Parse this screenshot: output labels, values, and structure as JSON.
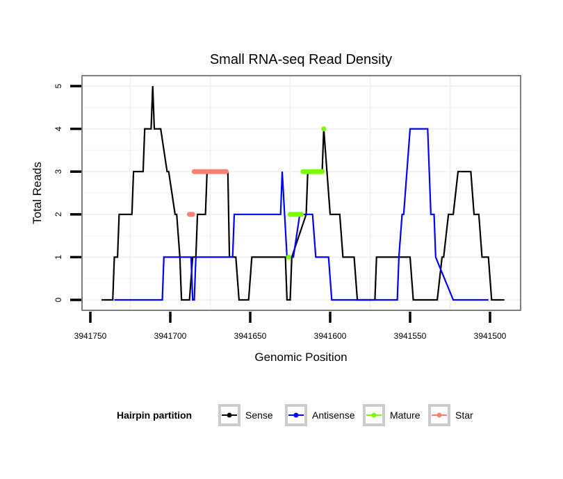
{
  "chart_data": {
    "type": "line",
    "title": "Small RNA-seq Read Density",
    "xlabel": "Genomic Position",
    "ylabel": "Total Reads",
    "xlim": [
      3941757,
      3941491
    ],
    "x_reversed": true,
    "ylim": [
      -0.25,
      5.25
    ],
    "x_ticks": [
      3941750,
      3941700,
      3941650,
      3941600,
      3941550,
      3941500
    ],
    "x_tick_labels": [
      "3941750",
      "3941700",
      "3941650",
      "3941600",
      "3941550",
      "3941500"
    ],
    "y_ticks": [
      0,
      1,
      2,
      3,
      4,
      5
    ],
    "y_tick_labels": [
      "0",
      "1",
      "2",
      "3",
      "4",
      "5"
    ],
    "grid": true,
    "legend": {
      "title": "Hairpin partition",
      "position": "bottom",
      "entries": [
        {
          "name": "Sense",
          "color": "#000000"
        },
        {
          "name": "Antisense",
          "color": "#0000ff"
        },
        {
          "name": "Mature",
          "color": "#7cfc00"
        },
        {
          "name": "Star",
          "color": "#fa8072"
        }
      ]
    },
    "series": [
      {
        "name": "Sense",
        "color": "#000000",
        "style": "line",
        "x": [
          3941743,
          3941736,
          3941735,
          3941733,
          3941732,
          3941724,
          3941723,
          3941717,
          3941716,
          3941712,
          3941711,
          3941710,
          3941706,
          3941702,
          3941701,
          3941697,
          3941696,
          3941694,
          3941693,
          3941688,
          3941686,
          3941684,
          3941683,
          3941678,
          3941677,
          3941664,
          3941663,
          3941659,
          3941657,
          3941651,
          3941649,
          3941628,
          3941627,
          3941625,
          3941624,
          3941615,
          3941614,
          3941605,
          3941604,
          3941602,
          3941600,
          3941594,
          3941592,
          3941585,
          3941583,
          3941572,
          3941571,
          3941550,
          3941548,
          3941533,
          3941530,
          3941529,
          3941526,
          3941523,
          3941520,
          3941512,
          3941510,
          3941507,
          3941505,
          3941501,
          3941499,
          3941491
        ],
        "y": [
          0,
          0,
          1,
          1,
          2,
          2,
          3,
          3,
          4,
          4,
          5,
          4,
          4,
          3,
          3,
          2,
          2,
          1,
          0,
          0,
          1,
          1,
          2,
          2,
          3,
          3,
          1,
          1,
          0,
          0,
          1,
          1,
          0,
          0,
          1,
          2,
          3,
          3,
          4,
          3,
          2,
          2,
          1,
          1,
          0,
          0,
          1,
          1,
          0,
          0,
          1,
          1,
          2,
          2,
          3,
          3,
          2,
          2,
          1,
          1,
          0,
          0
        ]
      },
      {
        "name": "Antisense",
        "color": "#0000ff",
        "style": "line",
        "x": [
          3941735,
          3941705,
          3941704,
          3941687,
          3941686,
          3941685,
          3941684,
          3941682,
          3941681,
          3941663,
          3941662,
          3941661,
          3941660,
          3941643,
          3941642,
          3941631,
          3941630,
          3941627,
          3941626,
          3941624,
          3941623,
          3941619,
          3941618,
          3941611,
          3941609,
          3941601,
          3941599,
          3941578,
          3941577,
          3941558,
          3941557,
          3941555,
          3941554,
          3941552,
          3941550,
          3941539,
          3941537,
          3941535,
          3941534,
          3941523,
          3941522,
          3941501
        ],
        "y": [
          0,
          0,
          1,
          1,
          0,
          0,
          1,
          1,
          1,
          1,
          1,
          1,
          2,
          2,
          2,
          2,
          3,
          1,
          1,
          1,
          1,
          2,
          2,
          2,
          1,
          1,
          0,
          0,
          0,
          0,
          1,
          2,
          2,
          3,
          4,
          4,
          2,
          2,
          1,
          0,
          0,
          0
        ]
      },
      {
        "name": "Mature",
        "color": "#7cfc00",
        "style": "points",
        "x": [
          3941626,
          3941625,
          3941624,
          3941623,
          3941622,
          3941621,
          3941620,
          3941619,
          3941618,
          3941617,
          3941616,
          3941615,
          3941614,
          3941613,
          3941612,
          3941611,
          3941610,
          3941609,
          3941608,
          3941607,
          3941606,
          3941605,
          3941604
        ],
        "y": [
          1,
          2,
          2,
          2,
          2,
          2,
          2,
          2,
          2,
          3,
          3,
          3,
          3,
          3,
          3,
          3,
          3,
          3,
          3,
          3,
          3,
          3,
          4
        ]
      },
      {
        "name": "Star",
        "color": "#fa8072",
        "style": "points",
        "x": [
          3941688,
          3941687,
          3941686,
          3941685,
          3941684,
          3941683,
          3941682,
          3941681,
          3941680,
          3941679,
          3941678,
          3941677,
          3941676,
          3941675,
          3941674,
          3941673,
          3941672,
          3941671,
          3941670,
          3941669,
          3941668,
          3941667,
          3941666,
          3941665
        ],
        "y": [
          2,
          2,
          2,
          3,
          3,
          3,
          3,
          3,
          3,
          3,
          3,
          3,
          3,
          3,
          3,
          3,
          3,
          3,
          3,
          3,
          3,
          3,
          3,
          3
        ]
      }
    ]
  }
}
